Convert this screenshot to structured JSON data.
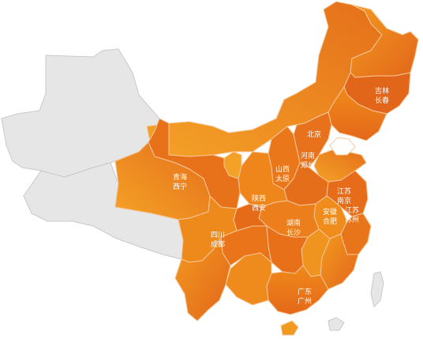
{
  "colors": {
    "orange_dark": "#e2661a",
    "orange_mid": "#ee8416",
    "orange_light": "#f4a227",
    "grey_region": "#e6e6e6",
    "label_text": "#ffffff",
    "water": "#ffffff"
  },
  "labels": {
    "jilin": {
      "province": "吉林",
      "capital": "长春"
    },
    "beijing": {
      "name": "北京"
    },
    "henan": {
      "province": "河南",
      "capital": "郑州"
    },
    "shanxi": {
      "province": "山西",
      "capital": "太原"
    },
    "qinghai": {
      "province": "青海",
      "capital": "西宁"
    },
    "shaanxi": {
      "province": "陕西",
      "capital": "西安"
    },
    "jiangsu1": {
      "province": "江苏",
      "capital": "南京"
    },
    "anhui": {
      "province": "安徽",
      "capital": "合肥"
    },
    "jiangsu2": {
      "province": "江苏",
      "capital": "苏州"
    },
    "hunan": {
      "province": "湖南",
      "capital": "长沙"
    },
    "sichuan": {
      "province": "四川",
      "capital": "成都"
    },
    "guangdong": {
      "province": "广东",
      "capital": "广州"
    }
  }
}
